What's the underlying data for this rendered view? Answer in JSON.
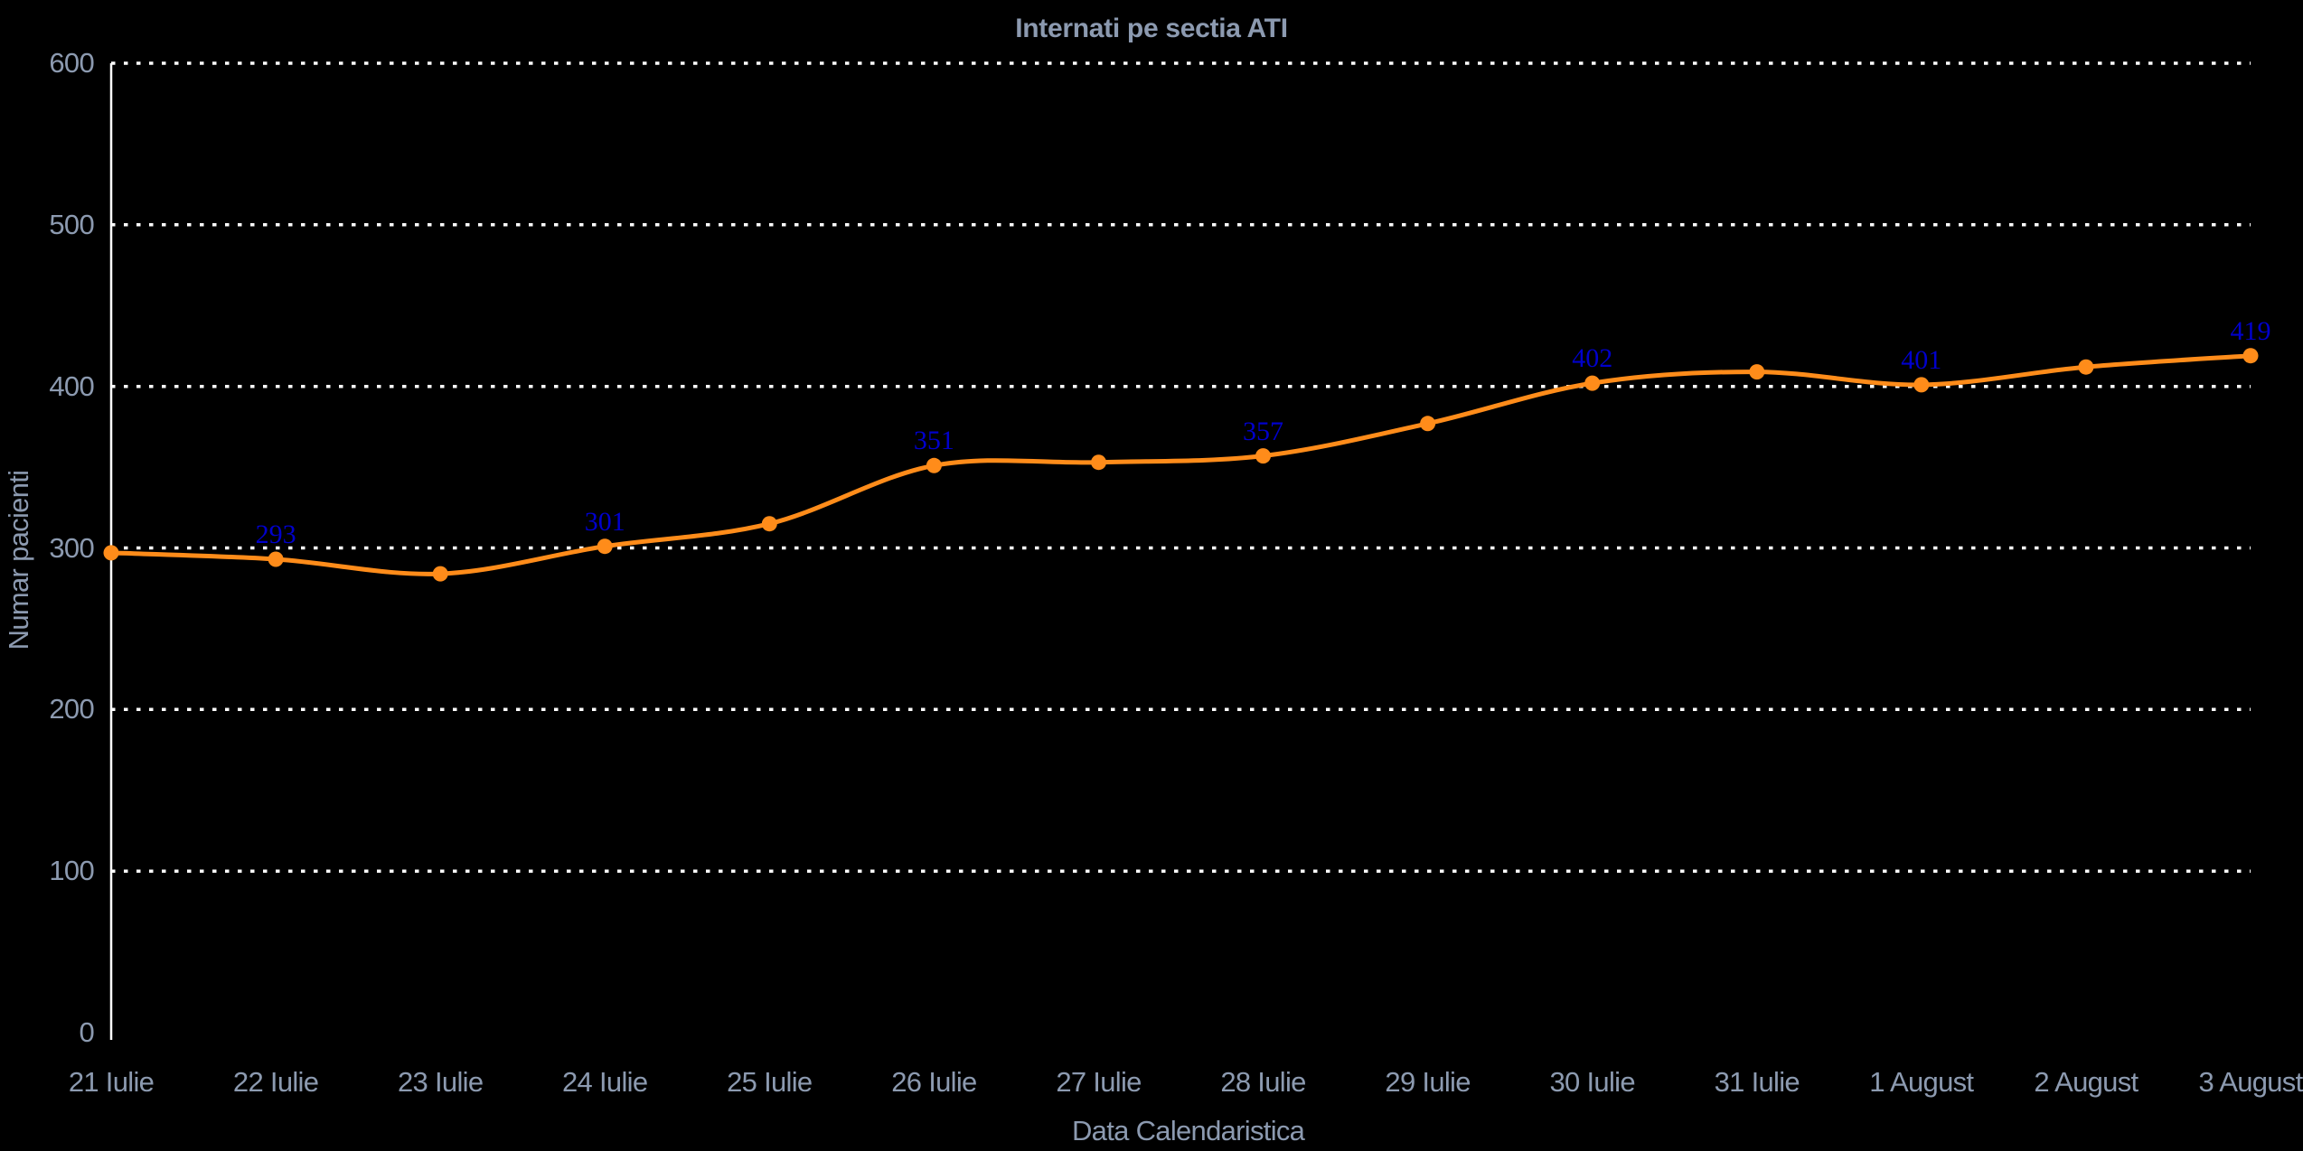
{
  "chart_data": {
    "type": "line",
    "title": "Internati pe sectia ATI",
    "xlabel": "Data Calendaristica",
    "ylabel": "Numar pacienti",
    "categories": [
      "21 Iulie",
      "22 Iulie",
      "23 Iulie",
      "24 Iulie",
      "25 Iulie",
      "26 Iulie",
      "27 Iulie",
      "28 Iulie",
      "29 Iulie",
      "30 Iulie",
      "31 Iulie",
      "1 August",
      "2 August",
      "3 August"
    ],
    "values": [
      297,
      293,
      284,
      301,
      315,
      351,
      353,
      357,
      377,
      402,
      409,
      401,
      412,
      419
    ],
    "data_labels": [
      null,
      "293",
      null,
      "301",
      null,
      "351",
      null,
      "357",
      null,
      "402",
      null,
      "401",
      null,
      "419"
    ],
    "yticks": [
      0,
      100,
      200,
      300,
      400,
      500,
      600
    ],
    "ylim": [
      0,
      600
    ],
    "line_shape": "spline",
    "grid": {
      "horizontal": true,
      "style": "dotted",
      "color": "#ffffff",
      "zero_line": false
    },
    "legend": {
      "visible": false
    },
    "colors": {
      "line": "#ff8c1a",
      "marker": "#ff8c1a",
      "data_label": "#0000cc",
      "axis": "#ffffff",
      "text": "#8c9ab0",
      "background": "#000000"
    }
  }
}
